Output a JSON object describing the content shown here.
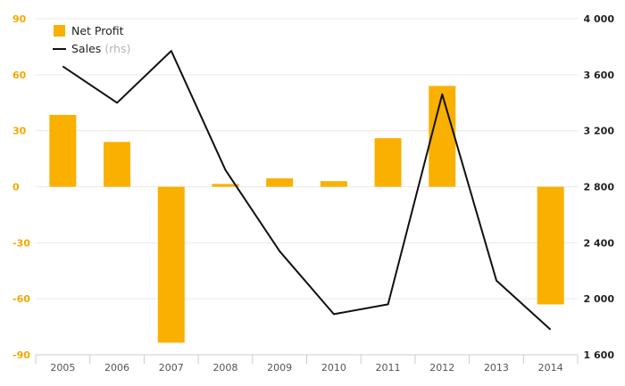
{
  "colors": {
    "bars": "#f9b000",
    "line": "#111111",
    "left_axis": "#f2a900",
    "grid": "#e9e9e9"
  },
  "legend": {
    "bar_label": "Net Profit",
    "line_label": "Sales",
    "line_unit": "(rhs)"
  },
  "chart_data": {
    "type": "bar",
    "categories": [
      "2005",
      "2006",
      "2007",
      "2008",
      "2009",
      "2010",
      "2011",
      "2012",
      "2013",
      "2014"
    ],
    "series": [
      {
        "name": "Net Profit",
        "type": "bar",
        "axis": "left",
        "values": [
          38.5,
          24,
          -83.5,
          1.5,
          4.5,
          3,
          26,
          54,
          0,
          -63
        ]
      },
      {
        "name": "Sales",
        "type": "line",
        "axis": "right",
        "values": [
          3660,
          3400,
          3770,
          2920,
          2340,
          1890,
          1960,
          3460,
          2130,
          1780
        ]
      }
    ],
    "y_left": {
      "min": -90,
      "max": 90,
      "ticks": [
        90,
        60,
        30,
        0,
        -30,
        -60,
        -90
      ]
    },
    "y_right": {
      "min": 1600,
      "max": 4000,
      "ticks": [
        "4 000",
        "3 600",
        "3 200",
        "2 800",
        "2 400",
        "2 000",
        "1 600"
      ]
    },
    "grid": true,
    "legend_position": "top-left"
  }
}
